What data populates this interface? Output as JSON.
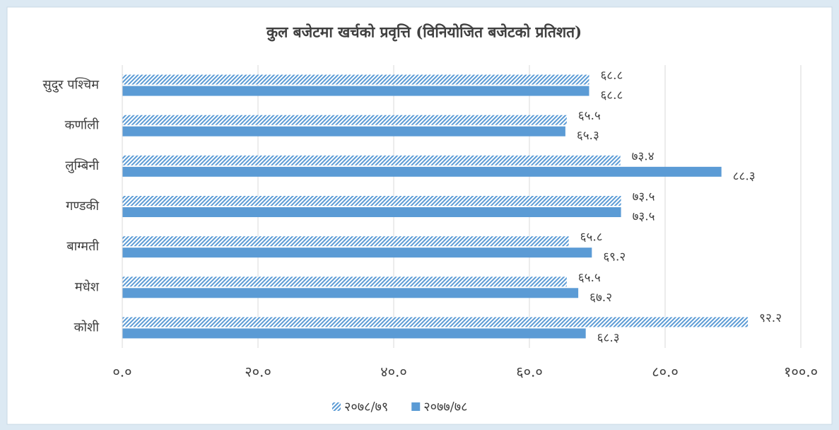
{
  "chart_data": {
    "type": "hbar",
    "title": "कुल बजेटमा खर्चको प्रवृत्ति (विनियोजित बजेटको प्रतिशत)",
    "categories": [
      "सुदुर पश्चिम",
      "कर्णाली",
      "लुम्बिनी",
      "गण्डकी",
      "बाग्मती",
      "मधेश",
      "कोशी"
    ],
    "series": [
      {
        "name": "२०७८/७९",
        "color": "#5b9bd5",
        "pattern": "hatch",
        "values": [
          68.8,
          65.5,
          73.4,
          73.5,
          65.8,
          65.5,
          92.2
        ],
        "value_labels": [
          "६८.८",
          "६५.५",
          "७३.४",
          "७३.५",
          "६५.८",
          "६५.५",
          "९२.२"
        ]
      },
      {
        "name": "२०७७/७८",
        "color": "#5b9bd5",
        "pattern": "solid",
        "values": [
          68.8,
          65.3,
          88.3,
          73.5,
          69.2,
          67.2,
          68.3
        ],
        "value_labels": [
          "६८.८",
          "६५.३",
          "८८.३",
          "७३.५",
          "६९.२",
          "६७.२",
          "६८.३"
        ]
      }
    ],
    "xlim": [
      0,
      100
    ],
    "xticks": [
      {
        "value": 0,
        "label": "०.०"
      },
      {
        "value": 20,
        "label": "२०.०"
      },
      {
        "value": 40,
        "label": "४०.०"
      },
      {
        "value": 60,
        "label": "६०.०"
      },
      {
        "value": 80,
        "label": "८०.०"
      },
      {
        "value": 100,
        "label": "१००.०"
      }
    ],
    "grid": true,
    "legend": "bottom"
  }
}
